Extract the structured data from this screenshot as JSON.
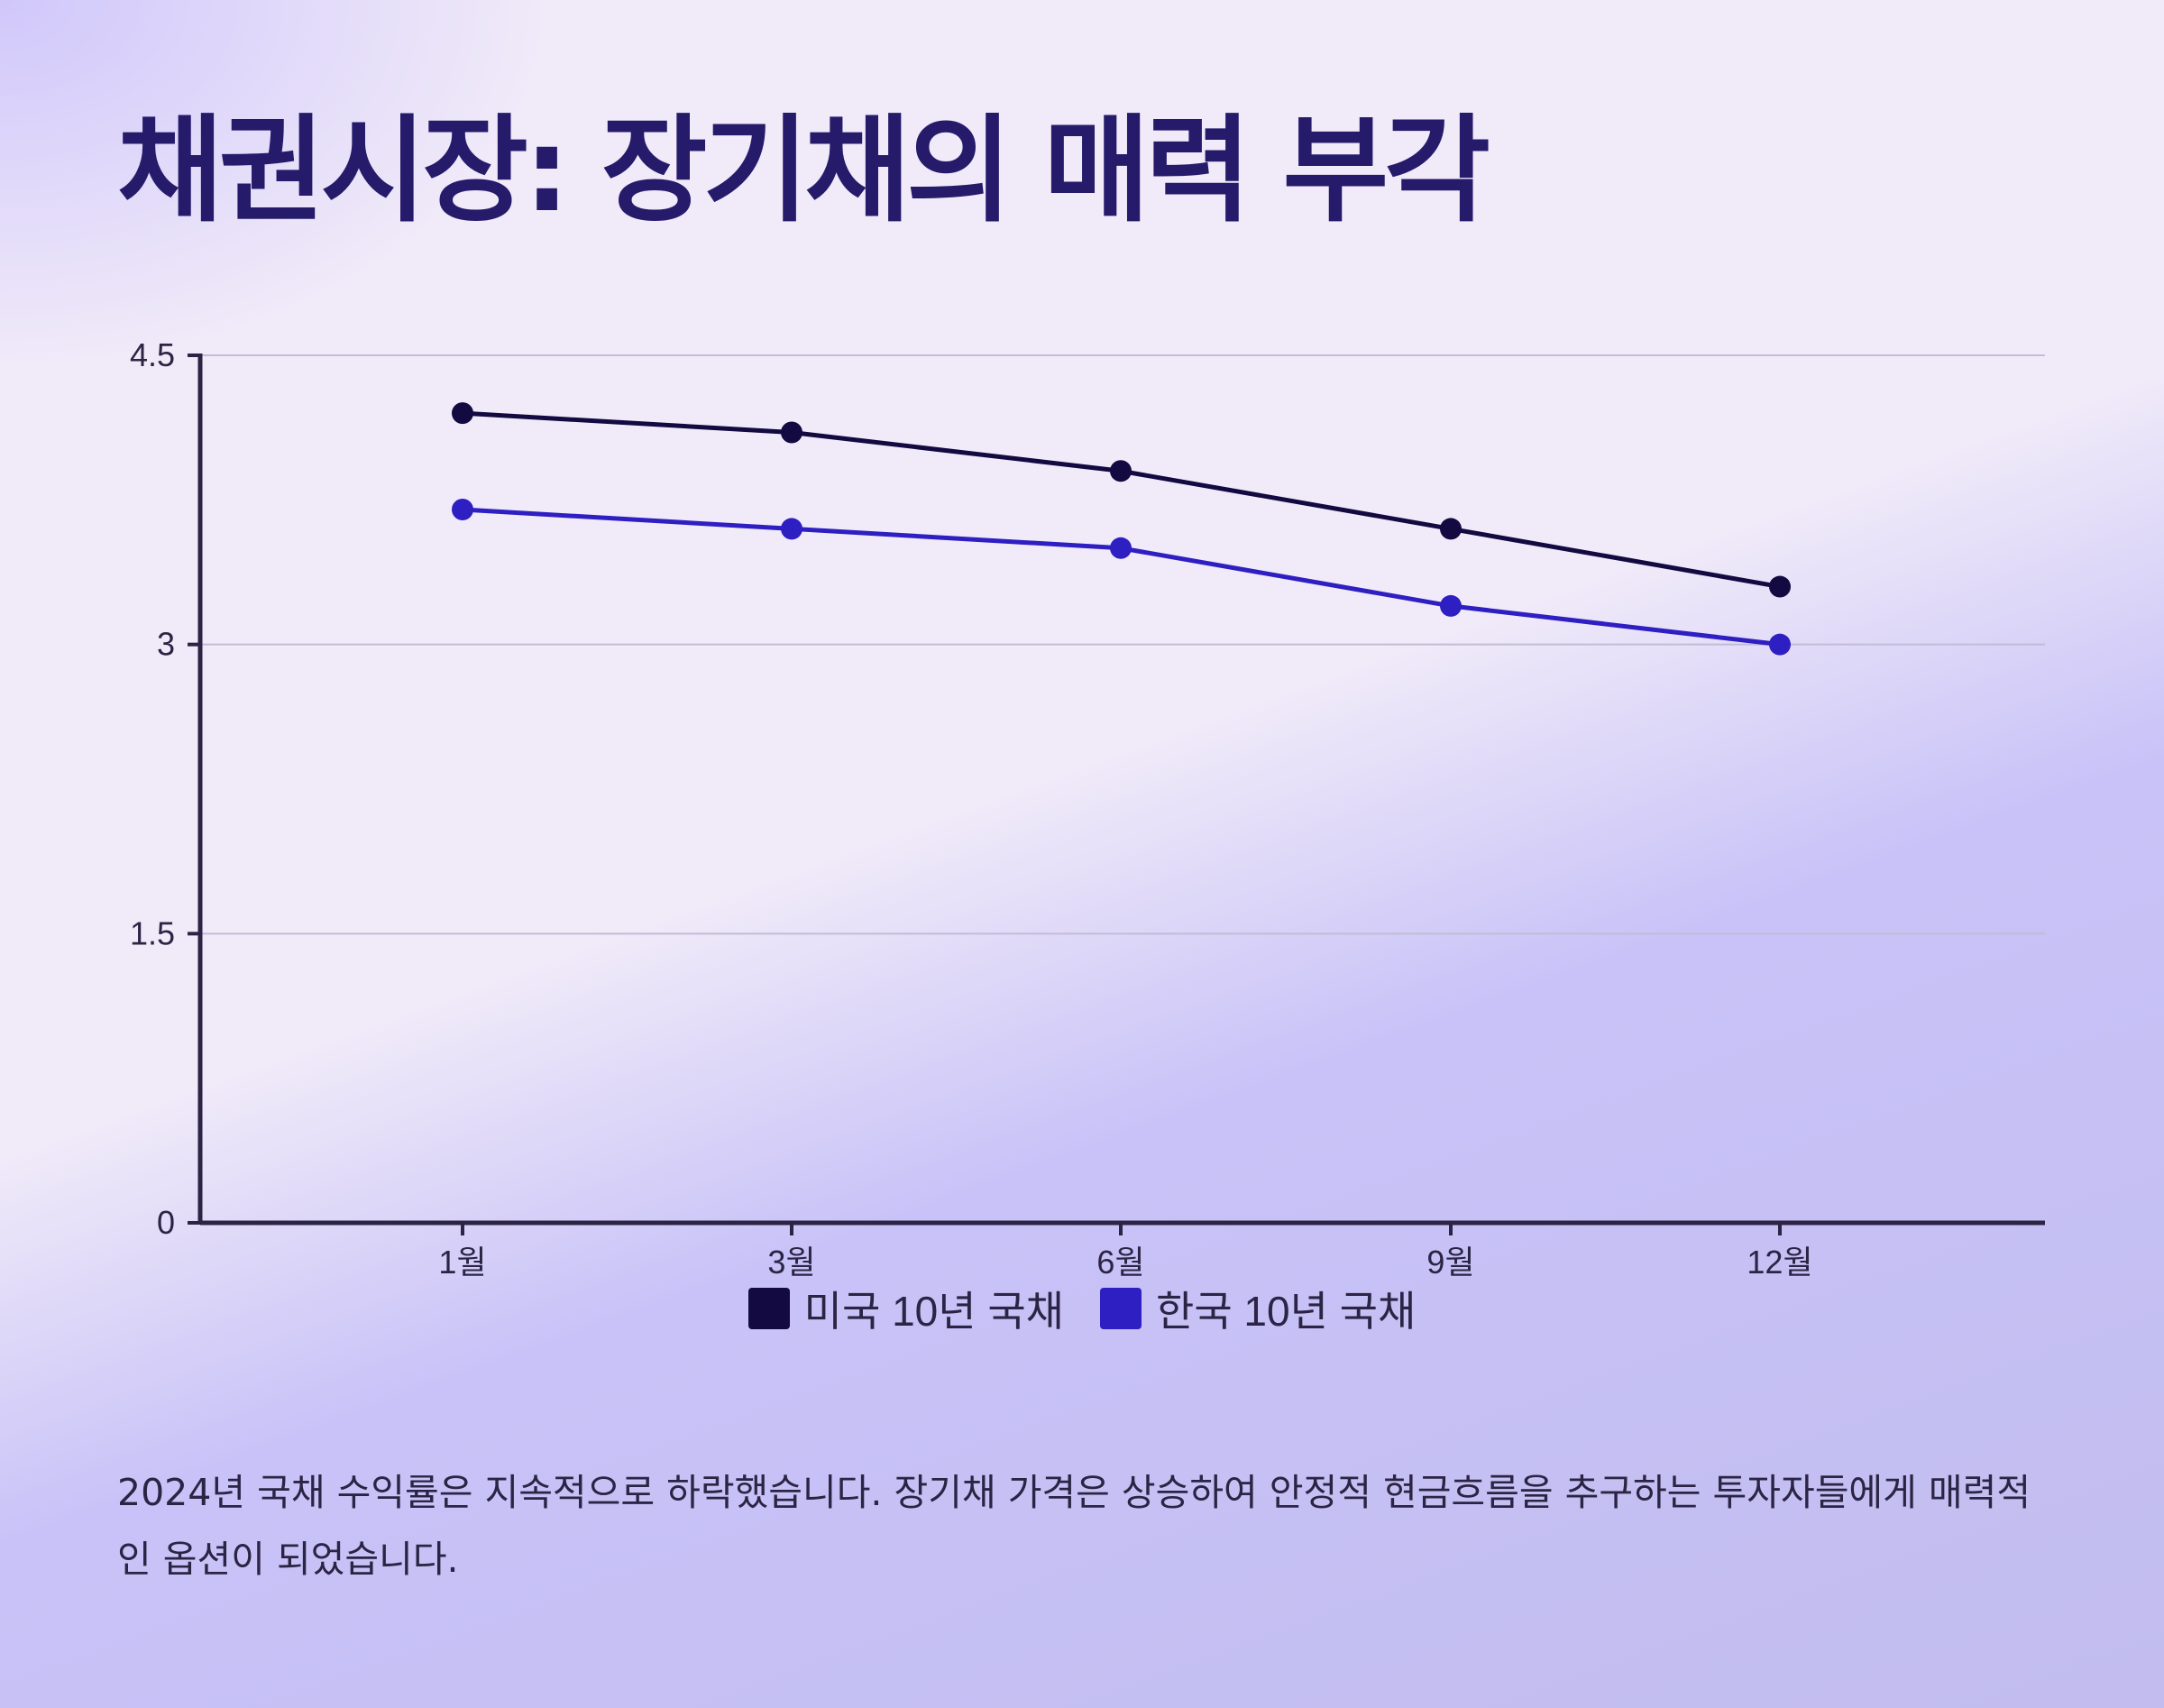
{
  "page": {
    "title": "채권시장: 장기채의 매력 부각",
    "summary": "2024년 국채 수익률은 지속적으로 하락했습니다. 장기채 가격은 상승하여 안정적 현금흐름을 추구하는 투자자들에게 매력적인 옵션이 되었습니다."
  },
  "chart_data": {
    "type": "line",
    "title": "",
    "xlabel": "",
    "ylabel": "",
    "categories": [
      "1월",
      "3월",
      "6월",
      "9월",
      "12월"
    ],
    "series": [
      {
        "name": "미국 10년 국채",
        "color": "#120a40",
        "values": [
          4.2,
          4.1,
          3.9,
          3.6,
          3.3
        ]
      },
      {
        "name": "한국 10년 국채",
        "color": "#2e1fc2",
        "values": [
          3.7,
          3.6,
          3.5,
          3.2,
          3.0
        ]
      }
    ],
    "ylim": [
      0,
      4.5
    ],
    "yticks": [
      0,
      1.5,
      3,
      4.5
    ],
    "ytick_labels": [
      "0",
      "1.5",
      "3",
      "4.5"
    ],
    "grid": true,
    "legend_position": "bottom-center"
  }
}
